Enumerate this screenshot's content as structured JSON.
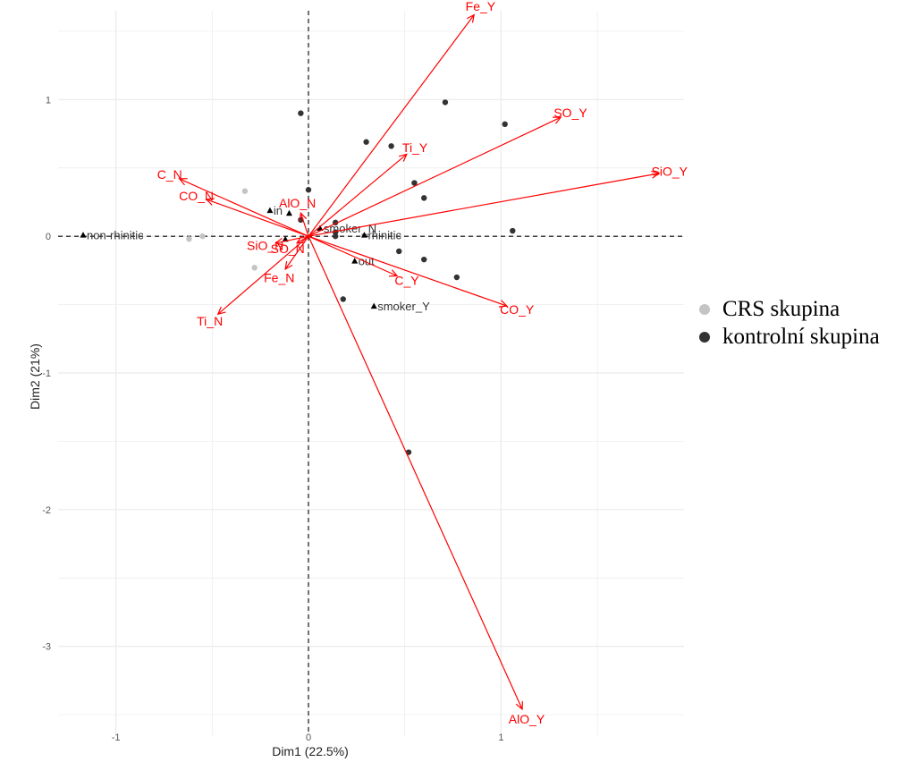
{
  "chart_data": {
    "type": "scatter",
    "subtype": "pca-biplot",
    "title": "",
    "xlabel": "Dim1 (22.5%)",
    "ylabel": "Dim2 (21%)",
    "xlim": [
      -1.3,
      1.95
    ],
    "ylim": [
      -3.65,
      1.65
    ],
    "xticks": [
      -1,
      0,
      1
    ],
    "yticks": [
      -3,
      -2,
      -1,
      0,
      1
    ],
    "grid": true,
    "reference_lines": {
      "x": 0,
      "y": 0,
      "style": "dashed"
    },
    "arrow_color": "#ff0000",
    "series": [
      {
        "name": "CRS skupina",
        "color": "#c4c4c4",
        "points": [
          [
            -0.33,
            0.33
          ],
          [
            -0.28,
            -0.23
          ],
          [
            -0.55,
            0.0
          ],
          [
            -0.62,
            -0.02
          ]
        ]
      },
      {
        "name": "kontrolní skupina",
        "color": "#333333",
        "points": [
          [
            -0.04,
            0.9
          ],
          [
            0.71,
            0.98
          ],
          [
            1.02,
            0.82
          ],
          [
            0.3,
            0.69
          ],
          [
            0.43,
            0.66
          ],
          [
            0.55,
            0.39
          ],
          [
            0.6,
            0.28
          ],
          [
            0.0,
            0.34
          ],
          [
            0.14,
            0.1
          ],
          [
            0.14,
            0.03
          ],
          [
            0.14,
            0.0
          ],
          [
            1.06,
            0.04
          ],
          [
            0.47,
            -0.11
          ],
          [
            0.6,
            -0.17
          ],
          [
            0.77,
            -0.3
          ],
          [
            0.18,
            -0.46
          ],
          [
            0.52,
            -1.58
          ],
          [
            -0.04,
            0.12
          ]
        ]
      }
    ],
    "categories": [
      {
        "label": "non-rhinitic",
        "x": -1.17,
        "y": 0.01
      },
      {
        "label": "in",
        "x": -0.2,
        "y": 0.19
      },
      {
        "label": "smoker_N",
        "x": 0.06,
        "y": 0.06
      },
      {
        "label": "rhinitic",
        "x": 0.29,
        "y": 0.01
      },
      {
        "label": "out",
        "x": 0.24,
        "y": -0.18
      },
      {
        "label": "smoker_Y",
        "x": 0.34,
        "y": -0.51
      },
      {
        "label": "",
        "x": -0.1,
        "y": 0.17
      },
      {
        "label": "",
        "x": -0.12,
        "y": -0.02
      }
    ],
    "arrows": [
      {
        "label": "Fe_Y",
        "x": 0.86,
        "y": 1.62
      },
      {
        "label": "SO_Y",
        "x": 1.31,
        "y": 0.87
      },
      {
        "label": "SiO_Y",
        "x": 1.82,
        "y": 0.46
      },
      {
        "label": "Ti_Y",
        "x": 0.51,
        "y": 0.6
      },
      {
        "label": "C_N",
        "x": -0.67,
        "y": 0.42
      },
      {
        "label": "CO_N",
        "x": -0.53,
        "y": 0.27
      },
      {
        "label": "AlO_N",
        "x": -0.04,
        "y": 0.17
      },
      {
        "label": "SiO_N",
        "x": -0.17,
        "y": -0.05
      },
      {
        "label": "SO_N",
        "x": -0.06,
        "y": -0.05
      },
      {
        "label": "Fe_N",
        "x": -0.12,
        "y": -0.24
      },
      {
        "label": "Ti_N",
        "x": -0.47,
        "y": -0.57
      },
      {
        "label": "C_Y",
        "x": 0.46,
        "y": -0.29
      },
      {
        "label": "CO_Y",
        "x": 1.03,
        "y": -0.51
      },
      {
        "label": "AlO_Y",
        "x": 1.11,
        "y": -3.46
      }
    ]
  }
}
